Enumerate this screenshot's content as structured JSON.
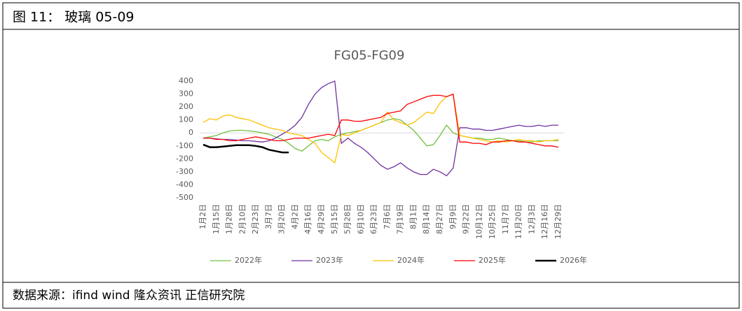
{
  "header": {
    "title": "图 11： 玻璃 05-09"
  },
  "chart_data": {
    "type": "line",
    "title": "FG05-FG09",
    "categories": [
      "1月2日",
      null,
      "1月15日",
      null,
      "1月28日",
      null,
      "2月10日",
      null,
      "2月23日",
      null,
      "3月7日",
      null,
      "3月20日",
      null,
      "4月2日",
      null,
      "4月16日",
      null,
      "4月29日",
      null,
      "5月15日",
      null,
      "5月28日",
      null,
      "6月10日",
      null,
      "6月23日",
      null,
      "7月6日",
      null,
      "7月19日",
      null,
      "8月1日",
      null,
      "8月14日",
      null,
      "8月27日",
      null,
      "9月9日",
      null,
      "9月22日",
      null,
      "10月12日",
      null,
      "10月25日",
      null,
      "11月7日",
      null,
      "11月20日",
      null,
      "12月3日",
      null,
      "12月16日",
      null,
      "12月29日"
    ],
    "ylim": [
      -500,
      400
    ],
    "yticks": [
      400,
      300,
      200,
      100,
      0,
      -100,
      -200,
      -300,
      -400,
      -500
    ],
    "series": [
      {
        "name": "2022年",
        "color": "#70c040",
        "values": [
          -40,
          -30,
          -20,
          0,
          15,
          20,
          20,
          15,
          10,
          0,
          -10,
          -30,
          -50,
          -80,
          -120,
          -140,
          -100,
          -60,
          -50,
          -60,
          -30,
          -10,
          0,
          10,
          20,
          40,
          60,
          80,
          100,
          110,
          100,
          60,
          20,
          -40,
          -100,
          -90,
          -20,
          60,
          0,
          -20,
          -30,
          -40,
          -40,
          -50,
          -50,
          -40,
          -50,
          -60,
          -60,
          -70,
          -70,
          -60,
          -60,
          -60,
          -60
        ]
      },
      {
        "name": "2023年",
        "color": "#7030a0",
        "values": [
          -40,
          -40,
          -45,
          -50,
          -50,
          -55,
          -60,
          -60,
          -65,
          -70,
          -60,
          -40,
          -10,
          20,
          60,
          120,
          220,
          300,
          350,
          380,
          400,
          -80,
          -40,
          -80,
          -110,
          -150,
          -200,
          -250,
          -280,
          -260,
          -230,
          -270,
          -300,
          -320,
          -320,
          -280,
          -300,
          -330,
          -270,
          40,
          40,
          30,
          30,
          20,
          20,
          30,
          40,
          50,
          60,
          50,
          50,
          60,
          50,
          60,
          60
        ]
      },
      {
        "name": "2024年",
        "color": "#ffc000",
        "values": [
          80,
          110,
          100,
          130,
          140,
          120,
          110,
          100,
          80,
          60,
          40,
          30,
          20,
          0,
          -10,
          -20,
          -50,
          -80,
          -150,
          -190,
          -230,
          -10,
          -20,
          0,
          20,
          40,
          60,
          80,
          160,
          100,
          80,
          60,
          80,
          120,
          160,
          150,
          230,
          280,
          300,
          -20,
          -30,
          -40,
          -50,
          -60,
          -70,
          -60,
          -70,
          -60,
          -50,
          -60,
          -60,
          -70,
          -60,
          -60,
          -50
        ]
      },
      {
        "name": "2025年",
        "color": "#ff0000",
        "values": [
          -40,
          -40,
          -50,
          -50,
          -60,
          -60,
          -50,
          -40,
          -30,
          -40,
          -50,
          -60,
          -60,
          -50,
          -40,
          -40,
          -40,
          -30,
          -20,
          -10,
          -20,
          100,
          100,
          90,
          90,
          100,
          110,
          120,
          150,
          160,
          170,
          220,
          240,
          260,
          280,
          290,
          290,
          280,
          300,
          -70,
          -70,
          -80,
          -80,
          -90,
          -70,
          -70,
          -60,
          -60,
          -70,
          -70,
          -80,
          -90,
          -100,
          -100,
          -110
        ]
      },
      {
        "name": "2026年",
        "color": "#000000",
        "values": [
          -90,
          -110,
          -110,
          -105,
          -100,
          -95,
          -95,
          -95,
          -100,
          -110,
          -130,
          -140,
          -150,
          -150,
          null,
          null,
          null,
          null,
          null,
          null,
          null,
          null,
          null,
          null,
          null,
          null,
          null,
          null,
          null,
          null,
          null,
          null,
          null,
          null,
          null,
          null,
          null,
          null,
          null,
          null,
          null,
          null,
          null,
          null,
          null,
          null,
          null,
          null,
          null,
          null,
          null,
          null,
          null,
          null,
          null
        ]
      }
    ]
  },
  "footer": {
    "source": "数据来源：ifind wind  隆众资讯  正信研究院"
  }
}
